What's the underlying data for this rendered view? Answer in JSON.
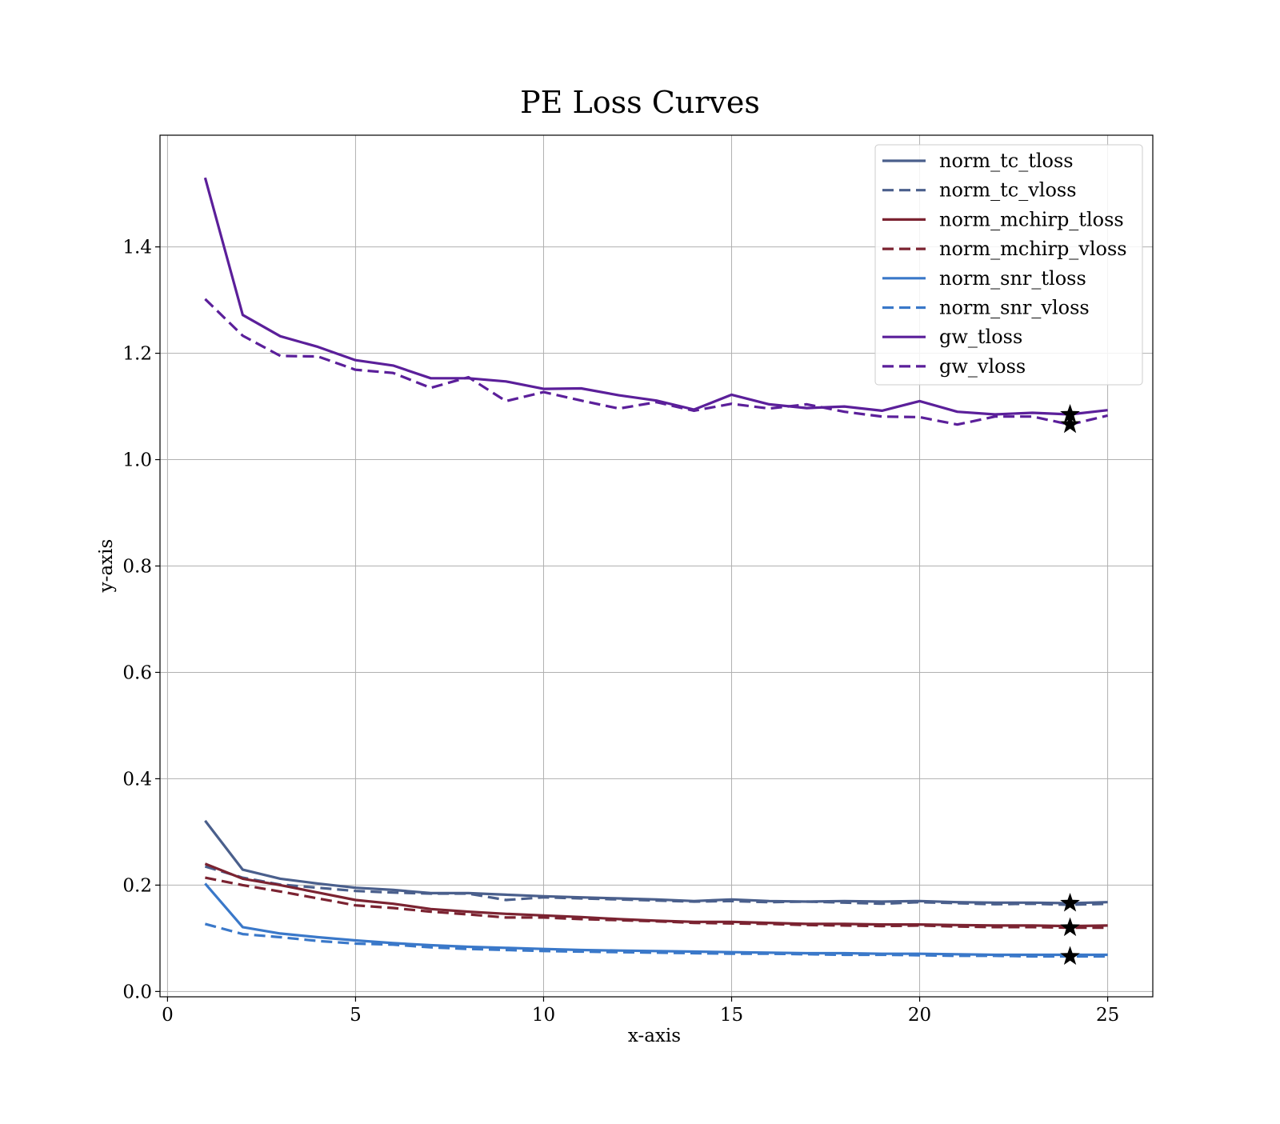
{
  "chart_data": {
    "type": "line",
    "title": "PE Loss Curves",
    "xlabel": "x-axis",
    "ylabel": "y-axis",
    "xlim": [
      -0.2,
      26.2
    ],
    "ylim": [
      -0.01,
      1.61
    ],
    "xticks": [
      0,
      5,
      10,
      15,
      20,
      25
    ],
    "yticks": [
      0.0,
      0.2,
      0.4,
      0.6,
      0.8,
      1.0,
      1.2,
      1.4
    ],
    "xtick_labels": [
      "0",
      "5",
      "10",
      "15",
      "20",
      "25"
    ],
    "ytick_labels": [
      "0.0",
      "0.2",
      "0.4",
      "0.6",
      "0.8",
      "1.0",
      "1.2",
      "1.4"
    ],
    "grid": true,
    "legend_position": "top-right",
    "x": [
      1,
      2,
      3,
      4,
      5,
      6,
      7,
      8,
      9,
      10,
      11,
      12,
      13,
      14,
      15,
      16,
      17,
      18,
      19,
      20,
      21,
      22,
      23,
      24,
      25
    ],
    "series": [
      {
        "name": "norm_tc_tloss",
        "color": "#4a5f8c",
        "dash": "solid",
        "values": [
          0.321,
          0.229,
          0.212,
          0.203,
          0.195,
          0.191,
          0.185,
          0.185,
          0.182,
          0.179,
          0.177,
          0.175,
          0.173,
          0.17,
          0.173,
          0.17,
          0.169,
          0.17,
          0.169,
          0.17,
          0.168,
          0.167,
          0.167,
          0.166,
          0.168
        ]
      },
      {
        "name": "norm_tc_vloss",
        "color": "#4a5f8c",
        "dash": "dashed",
        "values": [
          0.235,
          0.214,
          0.201,
          0.195,
          0.189,
          0.186,
          0.184,
          0.184,
          0.172,
          0.177,
          0.175,
          0.173,
          0.171,
          0.169,
          0.17,
          0.168,
          0.169,
          0.167,
          0.165,
          0.168,
          0.166,
          0.164,
          0.165,
          0.163,
          0.165
        ]
      },
      {
        "name": "norm_mchirp_tloss",
        "color": "#7b2331",
        "dash": "solid",
        "values": [
          0.24,
          0.212,
          0.2,
          0.186,
          0.172,
          0.165,
          0.155,
          0.15,
          0.146,
          0.143,
          0.14,
          0.136,
          0.133,
          0.131,
          0.131,
          0.129,
          0.127,
          0.127,
          0.126,
          0.126,
          0.125,
          0.124,
          0.124,
          0.123,
          0.124
        ]
      },
      {
        "name": "norm_mchirp_vloss",
        "color": "#7b2331",
        "dash": "dashed",
        "values": [
          0.214,
          0.2,
          0.188,
          0.175,
          0.162,
          0.157,
          0.15,
          0.145,
          0.139,
          0.139,
          0.136,
          0.134,
          0.132,
          0.129,
          0.128,
          0.127,
          0.125,
          0.124,
          0.123,
          0.124,
          0.122,
          0.121,
          0.121,
          0.12,
          0.12
        ]
      },
      {
        "name": "norm_snr_tloss",
        "color": "#3a78c9",
        "dash": "solid",
        "values": [
          0.203,
          0.121,
          0.109,
          0.102,
          0.096,
          0.091,
          0.087,
          0.084,
          0.082,
          0.08,
          0.078,
          0.077,
          0.076,
          0.075,
          0.074,
          0.073,
          0.072,
          0.072,
          0.071,
          0.071,
          0.07,
          0.069,
          0.069,
          0.069,
          0.069
        ]
      },
      {
        "name": "norm_snr_vloss",
        "color": "#3a78c9",
        "dash": "dashed",
        "values": [
          0.127,
          0.108,
          0.102,
          0.095,
          0.09,
          0.088,
          0.083,
          0.08,
          0.078,
          0.076,
          0.075,
          0.074,
          0.073,
          0.072,
          0.071,
          0.071,
          0.07,
          0.069,
          0.069,
          0.068,
          0.067,
          0.067,
          0.066,
          0.066,
          0.066
        ]
      },
      {
        "name": "gw_tloss",
        "color": "#5b1f9a",
        "dash": "solid",
        "values": [
          1.53,
          1.272,
          1.232,
          1.212,
          1.187,
          1.177,
          1.153,
          1.153,
          1.147,
          1.133,
          1.134,
          1.121,
          1.111,
          1.094,
          1.122,
          1.104,
          1.097,
          1.1,
          1.092,
          1.11,
          1.09,
          1.085,
          1.088,
          1.085,
          1.093
        ]
      },
      {
        "name": "gw_vloss",
        "color": "#5b1f9a",
        "dash": "dashed",
        "values": [
          1.302,
          1.233,
          1.195,
          1.194,
          1.169,
          1.163,
          1.135,
          1.155,
          1.11,
          1.127,
          1.111,
          1.096,
          1.108,
          1.092,
          1.105,
          1.096,
          1.104,
          1.09,
          1.081,
          1.08,
          1.066,
          1.081,
          1.081,
          1.066,
          1.083
        ]
      }
    ],
    "markers": {
      "symbol": "star",
      "color": "#000000",
      "points": [
        {
          "x": 24,
          "y": 1.085
        },
        {
          "x": 24,
          "y": 1.066
        },
        {
          "x": 24,
          "y": 0.166
        },
        {
          "x": 24,
          "y": 0.12
        },
        {
          "x": 24,
          "y": 0.066
        }
      ]
    }
  }
}
